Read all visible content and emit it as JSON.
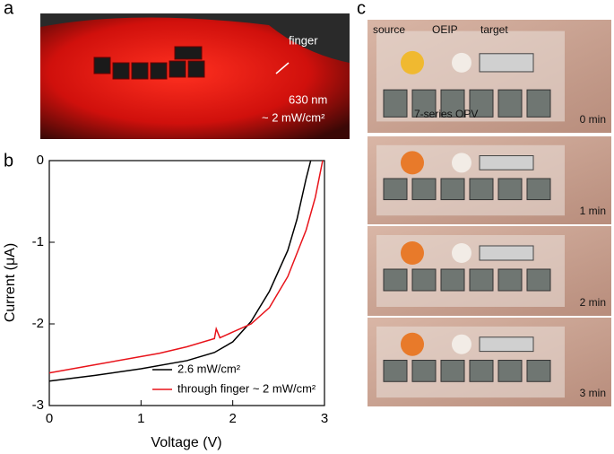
{
  "panels": {
    "a": {
      "letter": "a",
      "finger": "finger",
      "wavelength": "630 nm",
      "intensity": "~ 2 mW/cm²"
    },
    "b": {
      "letter": "b"
    },
    "c": {
      "letter": "c",
      "source": "source",
      "oeip": "OEIP",
      "target": "target",
      "opv": "7-series OPV",
      "times": [
        "0 min",
        "1 min",
        "2 min",
        "3 min"
      ]
    }
  },
  "chart_data": {
    "type": "line",
    "xlabel": "Voltage (V)",
    "ylabel": "Current (μA)",
    "xlim": [
      0,
      3
    ],
    "ylim": [
      -3,
      0
    ],
    "xticks": [
      0,
      1,
      2,
      3
    ],
    "yticks": [
      -3,
      -2,
      -1,
      0
    ],
    "legend": "lower left",
    "series": [
      {
        "name": "2.6 mW/cm²",
        "color": "#000000",
        "x": [
          0,
          0.5,
          1,
          1.5,
          1.8,
          2,
          2.2,
          2.4,
          2.6,
          2.7,
          2.8,
          2.85
        ],
        "values": [
          -2.7,
          -2.63,
          -2.55,
          -2.45,
          -2.35,
          -2.22,
          -1.97,
          -1.6,
          -1.1,
          -0.72,
          -0.22,
          0
        ]
      },
      {
        "name": "through finger ~ 2 mW/cm²",
        "color": "#e8131a",
        "x": [
          0,
          0.5,
          1,
          1.2,
          1.5,
          1.8,
          1.82,
          1.86,
          2,
          2.2,
          2.4,
          2.6,
          2.8,
          2.9,
          2.98
        ],
        "values": [
          -2.6,
          -2.5,
          -2.4,
          -2.36,
          -2.28,
          -2.18,
          -2.06,
          -2.17,
          -2.1,
          -2.0,
          -1.8,
          -1.42,
          -0.85,
          -0.45,
          0
        ]
      }
    ]
  }
}
